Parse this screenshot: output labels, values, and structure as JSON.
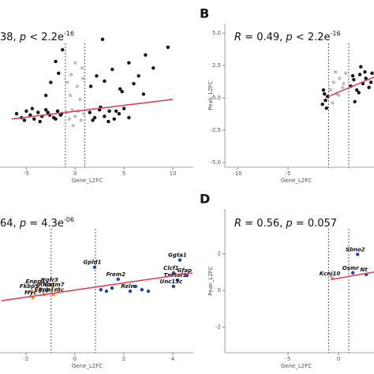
{
  "chart_data": [
    {
      "type": "scatter",
      "x_label": "Gene_L2FC",
      "title": [
        {
          "text": "38, "
        },
        {
          "text": "p",
          "italic": true
        },
        {
          "text": " <  2.2e"
        },
        {
          "text": "-16",
          "sup": true
        }
      ],
      "xlim": [
        -7.7,
        12.1
      ],
      "ylim": [
        -4,
        7
      ],
      "xticks": [
        -5,
        0,
        5,
        10
      ],
      "vlines": [
        -1,
        1
      ],
      "series": [
        {
          "color": "#111111",
          "x": [
            -6,
            -5.5,
            -5,
            -4.6,
            -4.2,
            -3.8,
            -3.4,
            -3,
            -2.6,
            -2.2,
            -1.8,
            -1.4,
            -5.2,
            -4.4,
            -3.6,
            -2.8,
            -2,
            -1.5,
            1.5,
            2,
            2.5,
            3,
            3.5,
            4,
            4.5,
            5,
            5.5,
            1.8,
            2.6,
            3.4,
            4.2,
            -2.5,
            -1.7,
            -2,
            1.6,
            2.2,
            3,
            3.8,
            4.6,
            5.5,
            6.5,
            7.2,
            8,
            9.5,
            2.8,
            4.8,
            6,
            7,
            -3,
            -1.3
          ],
          "values": [
            0.1,
            -0.2,
            0.3,
            0,
            -0.3,
            0.2,
            -0.1,
            0.4,
            0,
            -0.2,
            0.3,
            0.1,
            -0.4,
            0.5,
            -0.5,
            0.2,
            -0.3,
            0,
            0.2,
            -0.2,
            0.4,
            -0.1,
            0.3,
            -0.3,
            0.1,
            0.5,
            -0.2,
            -0.4,
            0.6,
            -0.5,
            0.3,
            2.5,
            3.2,
            4.1,
            2.2,
            3,
            2.6,
            3.5,
            2,
            4,
            3,
            4.6,
            3.6,
            5.2,
            5.8,
            1.8,
            2.4,
            1.6,
            1.5,
            5
          ]
        },
        {
          "color": "#bdbdbd",
          "x": [
            -0.9,
            -0.6,
            -0.3,
            0,
            0.3,
            0.6,
            0.9,
            -0.8,
            -0.4,
            0.2,
            0.7,
            -0.5,
            0.5,
            0,
            -0.2,
            0.8
          ],
          "values": [
            0.2,
            -0.3,
            0.4,
            -0.1,
            0.3,
            -0.4,
            0.1,
            2.5,
            3.1,
            2.2,
            3.6,
            1.5,
            1.2,
            4,
            -0.8,
            2.8
          ]
        }
      ],
      "fit": {
        "color": "#d9415f",
        "x": [
          -6.5,
          10
        ],
        "values": [
          -0.3,
          1.2
        ]
      }
    },
    {
      "type": "scatter",
      "panel": "B",
      "x_label": "Gene_L2FC",
      "y_label": "Peak_L2FC",
      "title": [
        {
          "text": "R",
          "italic": true
        },
        {
          "text": " = 0.49,  "
        },
        {
          "text": "p",
          "italic": true
        },
        {
          "text": " <  2.2e"
        },
        {
          "text": "-16",
          "sup": true
        }
      ],
      "xlim": [
        -11.25,
        3.5
      ],
      "ylim": [
        -5.37,
        5.73
      ],
      "xticks": [
        -10,
        -5
      ],
      "yticks": [
        {
          "value": -5,
          "label": "-5.0"
        },
        {
          "value": -2.5,
          "label": "-2.5"
        },
        {
          "value": 0,
          "label": "0.0"
        },
        {
          "value": 2.5,
          "label": "2.5"
        },
        {
          "value": 5,
          "label": "5.0"
        }
      ],
      "vlines": [
        -1,
        1
      ],
      "series": [
        {
          "color": "#111111",
          "x": [
            -1.6,
            -1.4,
            -1.2,
            -1.5,
            -1.3,
            -1.1,
            1.2,
            1.5,
            1.8,
            2.1,
            2.4,
            2.7,
            3,
            3.3,
            1.4,
            2,
            2.6,
            3.2,
            1.6,
            2.2
          ],
          "values": [
            -0.5,
            0.3,
            -0.8,
            0.6,
            -0.2,
            0.1,
            0.9,
            1.4,
            0.6,
            1.8,
            1.1,
            1.5,
            0.8,
            1.9,
            1.7,
            0.4,
            2,
            1.2,
            -0.3,
            2.4
          ]
        },
        {
          "color": "#bdbdbd",
          "x": [
            -0.8,
            -0.5,
            -0.2,
            0.1,
            0.4,
            0.7,
            -0.6,
            0,
            0.5,
            -0.3
          ],
          "values": [
            0.6,
            1.2,
            0.3,
            1.5,
            0.8,
            1.9,
            -0.4,
            0.2,
            1.1,
            2
          ]
        }
      ],
      "fit": {
        "color": "#d9415f",
        "x": [
          -1,
          3.5
        ],
        "values": [
          0.1,
          1.6
        ]
      }
    },
    {
      "type": "scatter",
      "x_label": "Gene_L2FC",
      "title": [
        {
          "text": "64, "
        },
        {
          "text": "p",
          "italic": true
        },
        {
          "text": " = 4.3e"
        },
        {
          "text": "-06",
          "sup": true
        }
      ],
      "xlim": [
        -3.06,
        4.84
      ],
      "ylim": [
        -2,
        4
      ],
      "xticks": [
        -2,
        0,
        2,
        4
      ],
      "vlines": [
        -0.97,
        0.84
      ],
      "series": [
        {
          "color": "#2b3fa8",
          "x": [
            0.81,
            4.29,
            4.03,
            4.58,
            1.77,
            4.19,
            4.03,
            2.26
          ],
          "values": [
            1.57,
            1.87,
            1.33,
            1.23,
            1.07,
            1.03,
            0.77,
            0.57
          ],
          "labels": [
            "Gpld1",
            "Ggta1",
            "Clcf1",
            "Gfap",
            "Frem2",
            "Tm4sf1",
            "Unc13c",
            "Reln"
          ]
        },
        {
          "color": "#e8902a",
          "x": [
            -1.52,
            -1.77,
            -1.71,
            -1.26,
            -1.06,
            -0.94,
            -0.74,
            -0.87
          ],
          "values": [
            0.77,
            0.57,
            0.3,
            0.43,
            0.63,
            0.83,
            0.63,
            0.43
          ],
          "labels": [
            "Enpp1",
            "Fkbp5",
            "Myc",
            "Egr1",
            "Rhoq",
            "Itgfr3",
            "Gstm7",
            "Ppp1r3c"
          ]
        },
        {
          "color": "#2b3fa8",
          "x": [
            1.06,
            1.29,
            1.52,
            2.74,
            3,
            2.48
          ],
          "values": [
            0.63,
            0.57,
            0.7,
            0.63,
            0.57,
            0.77
          ]
        }
      ],
      "fit": {
        "color": "#d9415f",
        "x": [
          -3,
          4.8
        ],
        "values": [
          0.17,
          1.33
        ]
      }
    },
    {
      "type": "scatter",
      "panel": "D",
      "x_label": "Gene_L2FC",
      "y_label": "Peak_L2FC",
      "title": [
        {
          "text": "R",
          "italic": true
        },
        {
          "text": " = 0.56,  "
        },
        {
          "text": "p",
          "italic": true
        },
        {
          "text": " = 0.057"
        }
      ],
      "xlim": [
        -11.25,
        3.5
      ],
      "ylim": [
        -3.39,
        4.43
      ],
      "xticks": [
        -5,
        0
      ],
      "yticks": [
        -2,
        0,
        2
      ],
      "vlines": [
        -1,
        1
      ],
      "series": [
        {
          "color": "#2b3fa8",
          "x": [
            1.88,
            1.41,
            2.73
          ],
          "values": [
            1.96,
            0.96,
            0.87
          ],
          "labels": [
            "Sbno2",
            "Osmr",
            "Nt"
          ]
        },
        {
          "color": "#e8902a",
          "x": [
            -0.63
          ],
          "values": [
            0.65
          ],
          "labels": [
            "Kcnj10"
          ]
        }
      ],
      "fit": {
        "color": "#d9415f",
        "x": [
          -0.7,
          3.5
        ],
        "values": [
          0.6,
          1.0
        ]
      }
    }
  ]
}
